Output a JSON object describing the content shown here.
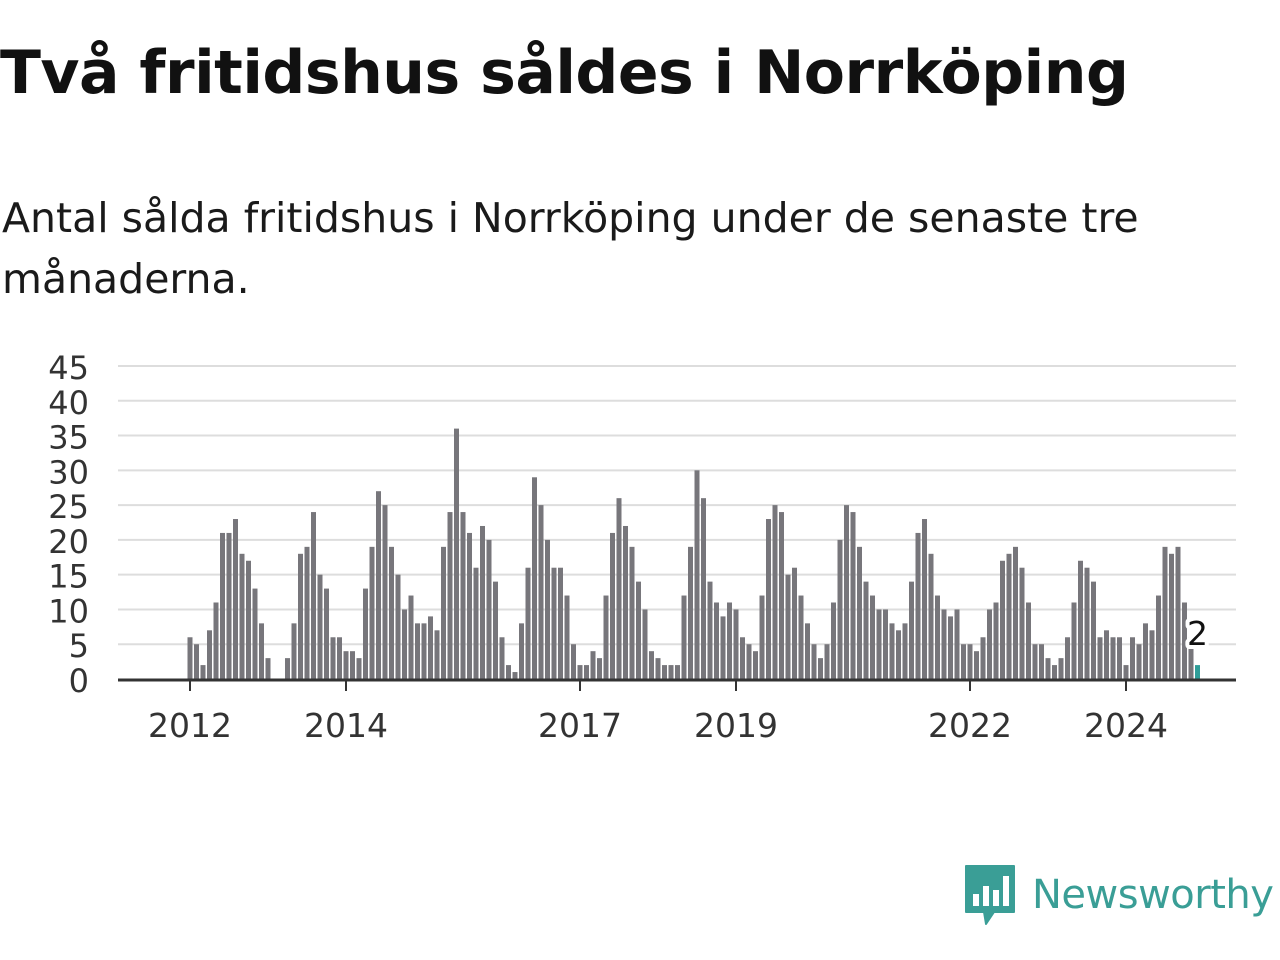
{
  "title": "Två fritidshus såldes i Norrköping",
  "subtitle": "Antal sålda fritidshus i Norrköping under de senaste tre månaderna.",
  "logo": {
    "text": "Newsworthy",
    "icon": "newsworthy-logo-icon",
    "color": "#3a9e96"
  },
  "colors": {
    "bar": "#77767b",
    "highlight": "#2f9e99",
    "grid": "#dddddd",
    "axis": "#333333"
  },
  "chart_data": {
    "type": "bar",
    "start": "2011-10",
    "values": [
      0,
      0,
      0,
      6,
      5,
      2,
      7,
      11,
      21,
      21,
      23,
      18,
      17,
      13,
      8,
      3,
      0,
      0,
      3,
      8,
      18,
      19,
      24,
      15,
      13,
      6,
      6,
      4,
      4,
      3,
      13,
      19,
      27,
      25,
      19,
      15,
      10,
      12,
      8,
      8,
      9,
      7,
      19,
      24,
      36,
      24,
      21,
      16,
      22,
      20,
      14,
      6,
      2,
      1,
      8,
      16,
      29,
      25,
      20,
      16,
      16,
      12,
      5,
      2,
      2,
      4,
      3,
      12,
      21,
      26,
      22,
      19,
      14,
      10,
      4,
      3,
      2,
      2,
      2,
      12,
      19,
      30,
      26,
      14,
      11,
      9,
      11,
      10,
      6,
      5,
      4,
      12,
      23,
      25,
      24,
      15,
      16,
      12,
      8,
      5,
      3,
      5,
      11,
      20,
      25,
      24,
      19,
      14,
      12,
      10,
      10,
      8,
      7,
      8,
      14,
      21,
      23,
      18,
      12,
      10,
      9,
      10,
      5,
      5,
      4,
      6,
      10,
      11,
      17,
      18,
      19,
      16,
      11,
      5,
      5,
      3,
      2,
      3,
      6,
      11,
      17,
      16,
      14,
      6,
      7,
      6,
      6,
      2,
      6,
      5,
      8,
      7,
      12,
      19,
      18,
      19,
      11,
      6,
      2
    ],
    "highlight_label": "2",
    "ylim": [
      0,
      45
    ],
    "yticks": [
      0,
      5,
      10,
      15,
      20,
      25,
      30,
      35,
      40,
      45
    ],
    "xticks": [
      "2012",
      "2014",
      "2017",
      "2019",
      "2022",
      "2024"
    ],
    "grid": true,
    "legend": "none"
  }
}
